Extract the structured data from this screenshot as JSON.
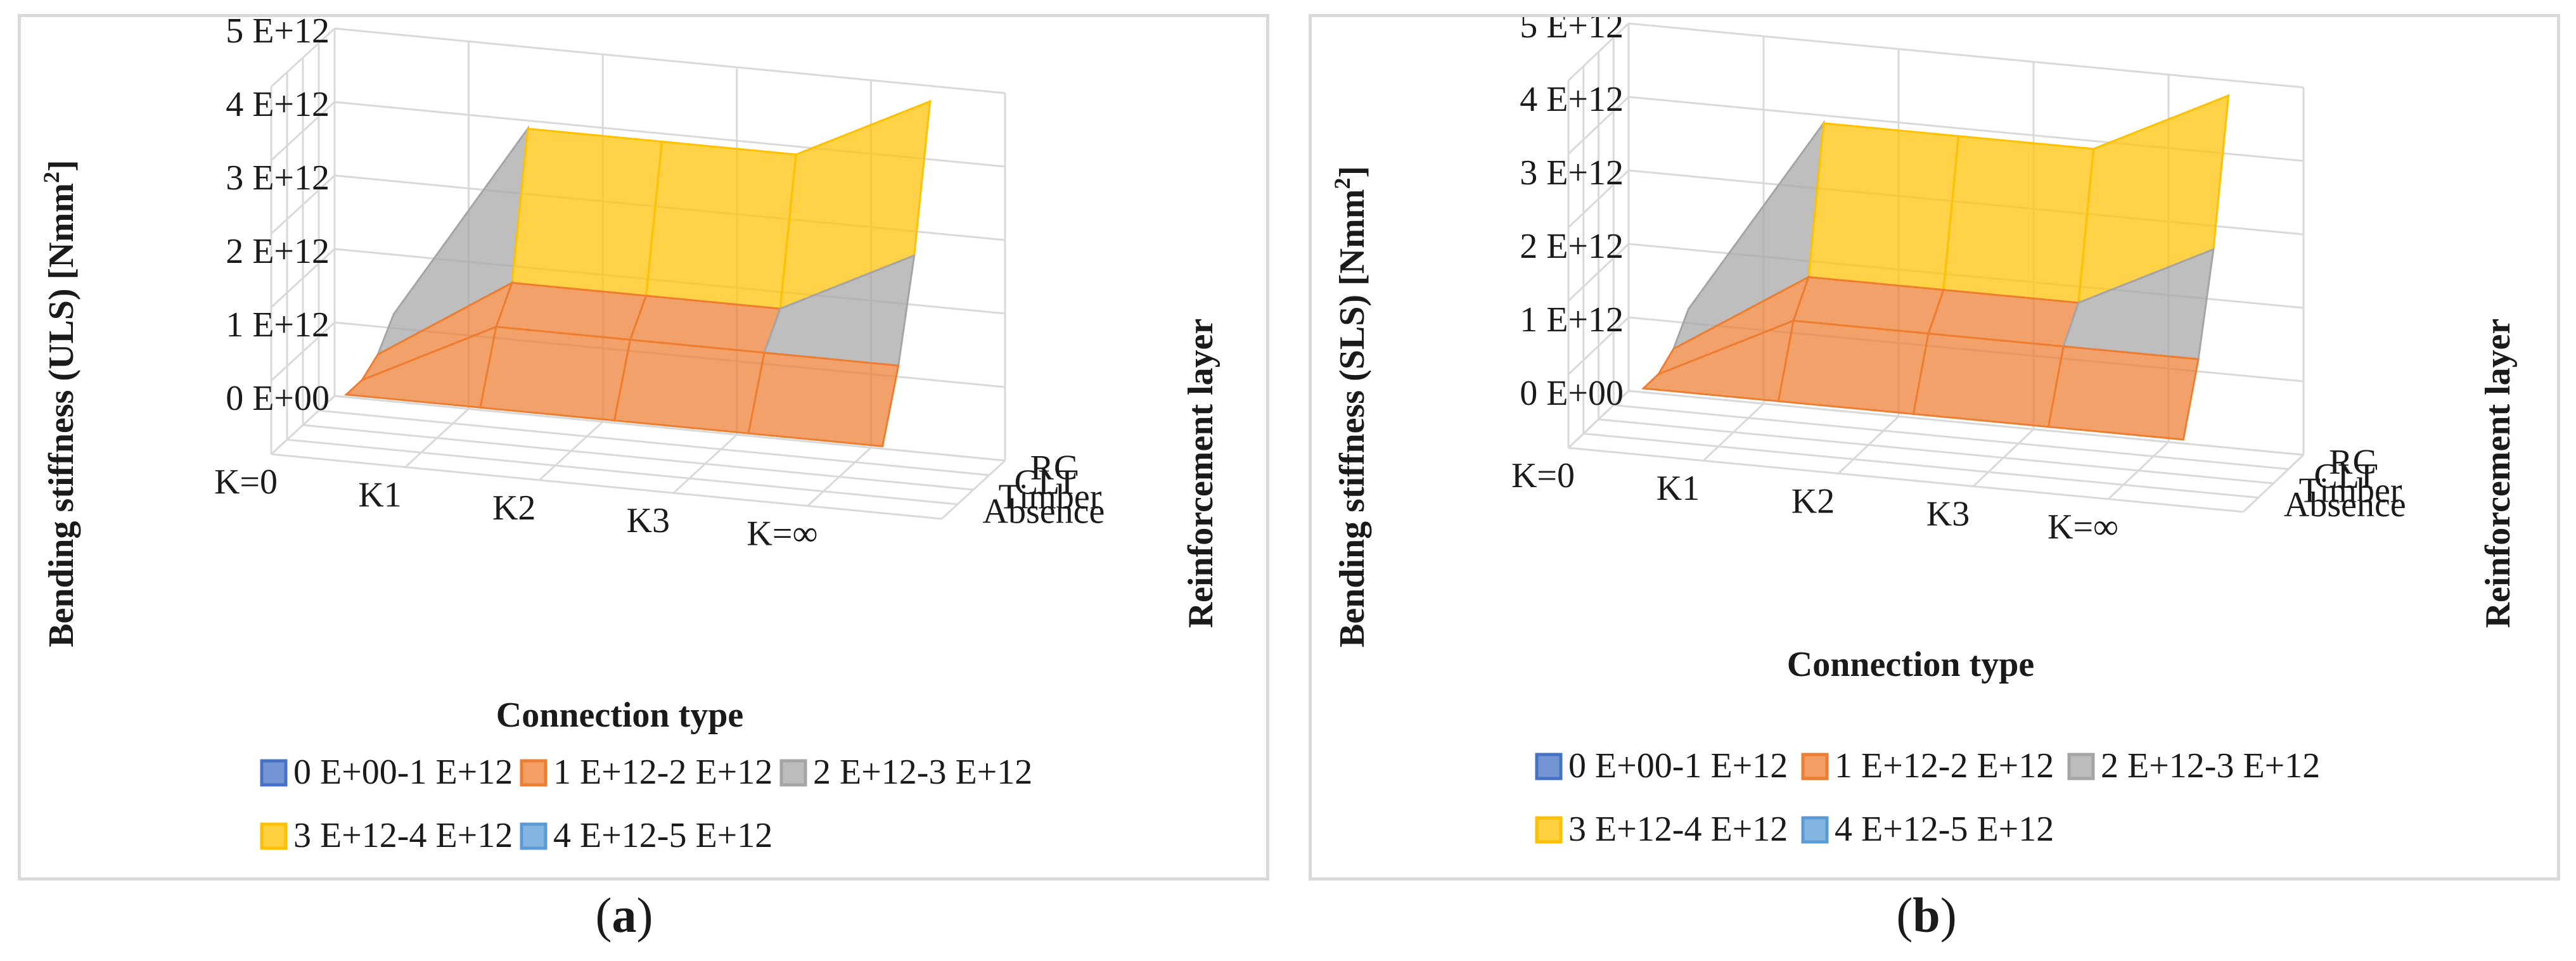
{
  "colors": {
    "band0": "#4472c4",
    "band1": "#ed7d31",
    "band2": "#a5a5a5",
    "band3": "#ffc000",
    "band4": "#5b9bd5",
    "grid": "#d9d9d9",
    "frame": "#d9d9d9"
  },
  "chart_data": [
    {
      "type": "surface3d",
      "caption_open": "(",
      "caption_letter": "a",
      "caption_close": ")",
      "ylabel": "Bending stiffness (ULS) [Nmm",
      "ylabel_sup": "2",
      "ylabel_close": "]",
      "xlabel": "Connection type",
      "zlabel": "Reinforcement layer",
      "x_categories": [
        "K=0",
        "K1",
        "K2",
        "K3",
        "K=∞"
      ],
      "z_categories": [
        "Absence",
        "Timber",
        "CLT",
        "RC"
      ],
      "y_ticks": [
        "0 E+00",
        "1 E+12",
        "2 E+12",
        "3 E+12",
        "4 E+12",
        "5 E+12"
      ],
      "ylim": [
        0,
        5000000000000.0
      ],
      "series": [
        {
          "name": "Absence",
          "values": [
            800000000000.0,
            800000000000.0,
            800000000000.0,
            800000000000.0,
            800000000000.0
          ]
        },
        {
          "name": "Timber",
          "values": [
            800000000000.0,
            1700000000000.0,
            1700000000000.0,
            1700000000000.0,
            1700000000000.0
          ]
        },
        {
          "name": "CLT",
          "values": [
            950000000000.0,
            2100000000000.0,
            2100000000000.0,
            2100000000000.0,
            3000000000000.0
          ]
        },
        {
          "name": "RC",
          "values": [
            1300000000000.0,
            4000000000000.0,
            4000000000000.0,
            4000000000000.0,
            4900000000000.0
          ]
        }
      ],
      "legend": [
        {
          "label": "0 E+00-1 E+12",
          "color": "#4472c4"
        },
        {
          "label": "1 E+12-2 E+12",
          "color": "#ed7d31"
        },
        {
          "label": "2 E+12-3 E+12",
          "color": "#a5a5a5"
        },
        {
          "label": "3 E+12-4 E+12",
          "color": "#ffc000"
        },
        {
          "label": "4 E+12-5 E+12",
          "color": "#5b9bd5"
        }
      ]
    },
    {
      "type": "surface3d",
      "caption_open": "(",
      "caption_letter": "b",
      "caption_close": ")",
      "ylabel": "Bending stiffness (SLS) [Nmm",
      "ylabel_sup": "2",
      "ylabel_close": "]",
      "xlabel": "Connection type",
      "zlabel": "Reinforcement layer",
      "x_categories": [
        "K=0",
        "K1",
        "K2",
        "K3",
        "K=∞"
      ],
      "z_categories": [
        "Absence",
        "Timber",
        "CLT",
        "RC"
      ],
      "y_ticks": [
        "0 E+00",
        "1 E+12",
        "2 E+12",
        "3 E+12",
        "4 E+12",
        "5 E+12"
      ],
      "ylim": [
        0,
        5000000000000.0
      ],
      "series": [
        {
          "name": "Absence",
          "values": [
            800000000000.0,
            800000000000.0,
            800000000000.0,
            800000000000.0,
            800000000000.0
          ]
        },
        {
          "name": "Timber",
          "values": [
            800000000000.0,
            1700000000000.0,
            1700000000000.0,
            1700000000000.0,
            1700000000000.0
          ]
        },
        {
          "name": "CLT",
          "values": [
            950000000000.0,
            2100000000000.0,
            2100000000000.0,
            2100000000000.0,
            3000000000000.0
          ]
        },
        {
          "name": "RC",
          "values": [
            1300000000000.0,
            4000000000000.0,
            4000000000000.0,
            4000000000000.0,
            4900000000000.0
          ]
        }
      ],
      "legend": [
        {
          "label": "0 E+00-1 E+12",
          "color": "#4472c4"
        },
        {
          "label": "1 E+12-2 E+12",
          "color": "#ed7d31"
        },
        {
          "label": "2 E+12-3 E+12",
          "color": "#a5a5a5"
        },
        {
          "label": "3 E+12-4 E+12",
          "color": "#ffc000"
        },
        {
          "label": "4 E+12-5 E+12",
          "color": "#5b9bd5"
        }
      ]
    }
  ]
}
